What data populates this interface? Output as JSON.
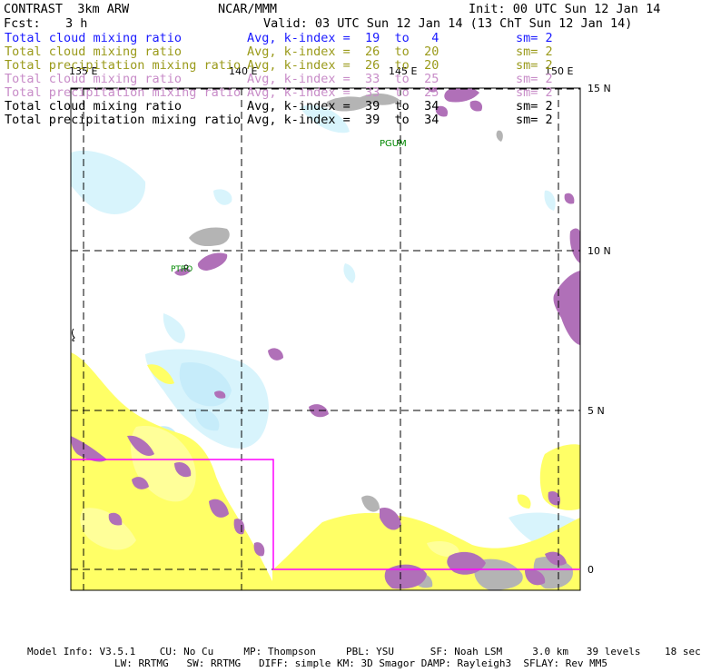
{
  "header": {
    "title": "CONTRAST  3km ARW",
    "center": "NCAR/MMM",
    "init": "Init: 00 UTC Sun 12 Jan 14",
    "fcst_label": "Fcst:",
    "fcst_value": "3 h",
    "valid": "Valid: 03 UTC Sun 12 Jan 14 (13 ChT Sun 12 Jan 14)"
  },
  "legend": [
    {
      "field": "Total cloud mixing ratio",
      "stat": "Avg, k-index =  19  to   4",
      "sm": "sm= 2",
      "color": "#1a1aff"
    },
    {
      "field": "Total cloud mixing ratio",
      "stat": "Avg, k-index =  26  to  20",
      "sm": "sm= 2",
      "color": "#9a9a1a"
    },
    {
      "field": "Total precipitation mixing ratio",
      "stat": "Avg, k-index =  26  to  20",
      "sm": "sm= 2",
      "color": "#9a9a1a"
    },
    {
      "field": "Total cloud mixing ratio",
      "stat": "Avg, k-index =  33  to  25",
      "sm": "sm= 2",
      "color": "#c88cc8"
    },
    {
      "field": "Total precipitation mixing ratio",
      "stat": "Avg, k-index =  33  to  25",
      "sm": "sm= 2",
      "color": "#c88cc8"
    },
    {
      "field": "Total cloud mixing ratio",
      "stat": "Avg, k-index =  39  to  34",
      "sm": "sm= 2",
      "color": "#000000"
    },
    {
      "field": "Total precipitation mixing ratio",
      "stat": "Avg, k-index =  39  to  34",
      "sm": "sm= 2",
      "color": "#000000"
    }
  ],
  "map": {
    "lon_labels": [
      "135 E",
      "140 E",
      "145 E",
      "150 E"
    ],
    "lat_labels": [
      "15 N",
      "10 N",
      "5 N",
      "0"
    ],
    "stations": [
      "PGUM",
      "PTRO"
    ],
    "colors": {
      "cyan": "#d8f4fc",
      "cyan2": "#c6ecfa",
      "yellow": "#ffff66",
      "yellow_light": "#ffff99",
      "gray": "#b4b4b4",
      "purple": "#b070b8",
      "box": "#ff00ff"
    }
  },
  "footer": {
    "line1": "Model Info: V3.5.1    CU: No Cu     MP: Thompson     PBL: YSU      SF: Noah LSM     3.0 km   39 levels    18 sec",
    "line2": "LW: RRTMG   SW: RRTMG   DIFF: simple KM: 3D Smagor DAMP: Rayleigh3  SFLAY: Rev MM5"
  }
}
